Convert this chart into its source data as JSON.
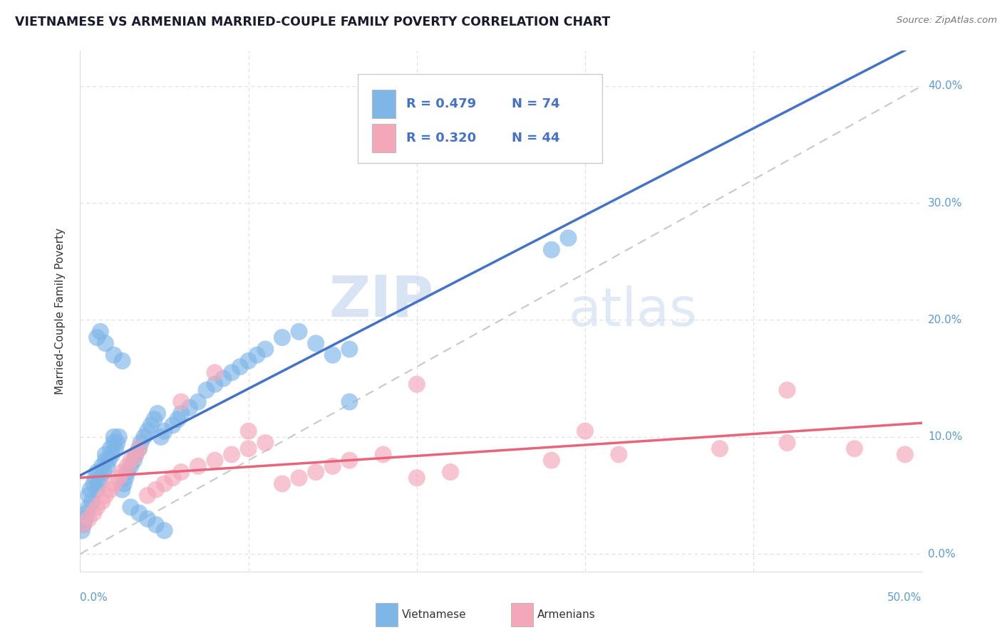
{
  "title": "VIETNAMESE VS ARMENIAN MARRIED-COUPLE FAMILY POVERTY CORRELATION CHART",
  "source": "Source: ZipAtlas.com",
  "ylabel": "Married-Couple Family Poverty",
  "xlim": [
    0.0,
    0.5
  ],
  "ylim": [
    -0.015,
    0.43
  ],
  "yticks": [
    0.0,
    0.1,
    0.2,
    0.3,
    0.4
  ],
  "right_ytick_labels": [
    "0.0%",
    "10.0%",
    "20.0%",
    "30.0%",
    "40.0%"
  ],
  "blue_color": "#7EB6E8",
  "pink_color": "#F4A7B9",
  "blue_line_color": "#4472C4",
  "pink_line_color": "#E8647A",
  "dashed_line_color": "#C8C8C8",
  "viet_x": [
    0.001,
    0.002,
    0.003,
    0.004,
    0.005,
    0.005,
    0.006,
    0.007,
    0.008,
    0.009,
    0.01,
    0.01,
    0.011,
    0.012,
    0.013,
    0.014,
    0.015,
    0.015,
    0.016,
    0.017,
    0.018,
    0.019,
    0.02,
    0.02,
    0.021,
    0.022,
    0.023,
    0.025,
    0.026,
    0.027,
    0.028,
    0.03,
    0.032,
    0.033,
    0.035,
    0.036,
    0.038,
    0.04,
    0.042,
    0.044,
    0.046,
    0.048,
    0.05,
    0.055,
    0.058,
    0.06,
    0.065,
    0.07,
    0.075,
    0.08,
    0.085,
    0.09,
    0.095,
    0.1,
    0.105,
    0.11,
    0.12,
    0.13,
    0.14,
    0.15,
    0.16,
    0.01,
    0.012,
    0.015,
    0.02,
    0.025,
    0.03,
    0.035,
    0.04,
    0.045,
    0.05,
    0.28,
    0.29,
    0.16
  ],
  "viet_y": [
    0.02,
    0.025,
    0.03,
    0.035,
    0.04,
    0.05,
    0.055,
    0.045,
    0.06,
    0.065,
    0.055,
    0.07,
    0.06,
    0.065,
    0.075,
    0.07,
    0.08,
    0.085,
    0.075,
    0.08,
    0.09,
    0.085,
    0.095,
    0.1,
    0.09,
    0.095,
    0.1,
    0.055,
    0.06,
    0.065,
    0.07,
    0.075,
    0.08,
    0.085,
    0.09,
    0.095,
    0.1,
    0.105,
    0.11,
    0.115,
    0.12,
    0.1,
    0.105,
    0.11,
    0.115,
    0.12,
    0.125,
    0.13,
    0.14,
    0.145,
    0.15,
    0.155,
    0.16,
    0.165,
    0.17,
    0.175,
    0.185,
    0.19,
    0.18,
    0.17,
    0.175,
    0.185,
    0.19,
    0.18,
    0.17,
    0.165,
    0.04,
    0.035,
    0.03,
    0.025,
    0.02,
    0.26,
    0.27,
    0.13
  ],
  "arm_x": [
    0.002,
    0.005,
    0.008,
    0.01,
    0.013,
    0.015,
    0.018,
    0.02,
    0.023,
    0.025,
    0.028,
    0.03,
    0.033,
    0.035,
    0.04,
    0.045,
    0.05,
    0.055,
    0.06,
    0.07,
    0.08,
    0.09,
    0.1,
    0.11,
    0.12,
    0.13,
    0.14,
    0.15,
    0.16,
    0.18,
    0.2,
    0.22,
    0.28,
    0.32,
    0.38,
    0.42,
    0.46,
    0.49,
    0.06,
    0.08,
    0.1,
    0.2,
    0.3,
    0.42
  ],
  "arm_y": [
    0.025,
    0.03,
    0.035,
    0.04,
    0.045,
    0.05,
    0.055,
    0.06,
    0.065,
    0.07,
    0.075,
    0.08,
    0.085,
    0.09,
    0.05,
    0.055,
    0.06,
    0.065,
    0.07,
    0.075,
    0.08,
    0.085,
    0.09,
    0.095,
    0.06,
    0.065,
    0.07,
    0.075,
    0.08,
    0.085,
    0.065,
    0.07,
    0.08,
    0.085,
    0.09,
    0.095,
    0.09,
    0.085,
    0.13,
    0.155,
    0.105,
    0.145,
    0.105,
    0.14
  ]
}
